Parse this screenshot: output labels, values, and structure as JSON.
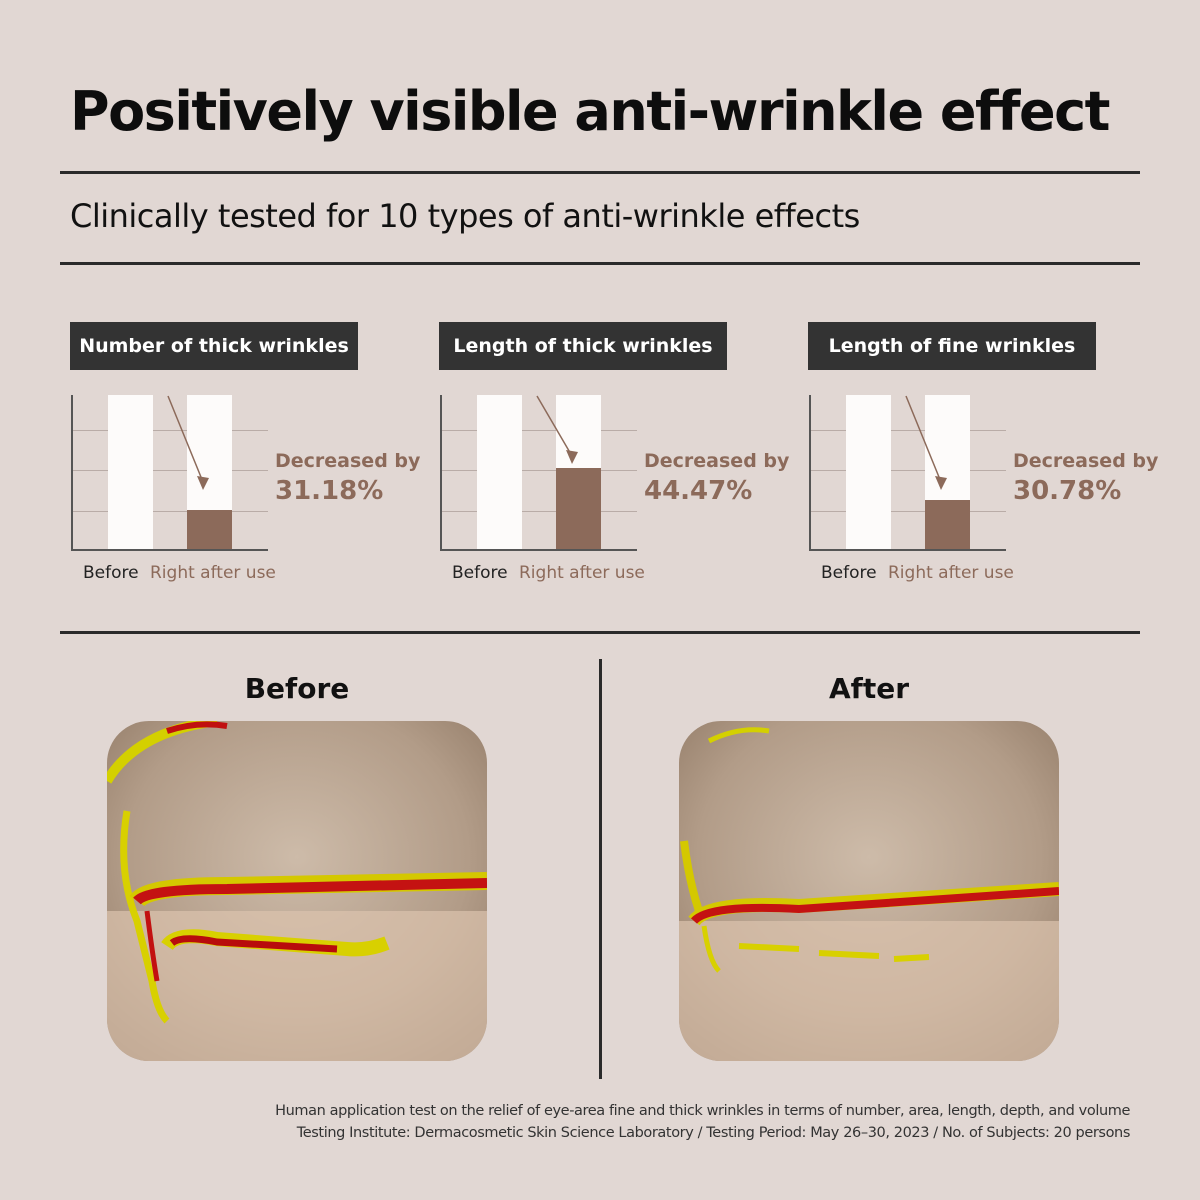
{
  "title": "Positively visible anti-wrinkle effect",
  "subtitle": "Clinically tested for 10 types of anti-wrinkle effects",
  "charts": [
    {
      "label": "Number of thick wrinkles",
      "before_label": "Before",
      "after_label": "Right after use",
      "decrease_label": "Decreased by",
      "decrease_value": "31.18%",
      "after_level_shown": 0.26
    },
    {
      "label": "Length of thick wrinkles",
      "before_label": "Before",
      "after_label": "Right after use",
      "decrease_label": "Decreased by",
      "decrease_value": "44.47%",
      "after_level_shown": 0.53
    },
    {
      "label": "Length of fine wrinkles",
      "before_label": "Before",
      "after_label": "Right after use",
      "decrease_label": "Decreased by",
      "decrease_value": "30.78%",
      "after_level_shown": 0.32
    }
  ],
  "comparison": {
    "before_title": "Before",
    "after_title": "After"
  },
  "footnote": {
    "line1": "Human application test on the relief of eye-area fine and thick wrinkles in terms of number, area, length, depth, and volume",
    "line2": "Testing Institute: Dermacosmetic Skin Science Laboratory / Testing Period: May 26–30, 2023 / No. of Subjects: 20 persons"
  },
  "colors": {
    "background": "#e1d7d3",
    "accent": "#8c6a5a",
    "label_bg": "#333333"
  }
}
